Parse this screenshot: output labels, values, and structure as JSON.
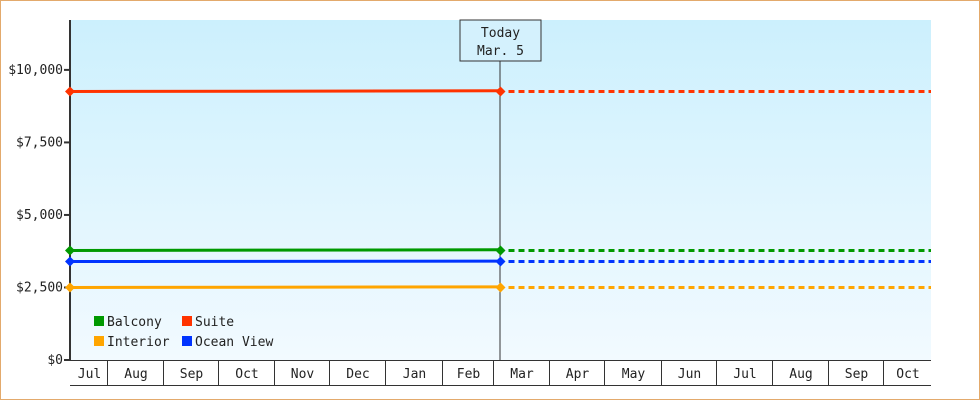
{
  "chart_data": {
    "type": "line",
    "title": "",
    "xlabel": "",
    "ylabel": "",
    "ylim": [
      0,
      11720
    ],
    "y_ticks": [
      "$0",
      "$2,500",
      "$5,000",
      "$7,500",
      "$10,000"
    ],
    "y_tick_values": [
      0,
      2500,
      5000,
      7500,
      10000
    ],
    "x_tick_labels": [
      "Jul",
      "Aug",
      "Sep",
      "Oct",
      "Nov",
      "Dec",
      "Jan",
      "Feb",
      "Mar",
      "Apr",
      "May",
      "Jun",
      "Jul",
      "Aug",
      "Sep",
      "Oct"
    ],
    "today": {
      "label": "Today",
      "date": "Mar. 5"
    },
    "grid": false,
    "legend_placement": "bottom-left",
    "background_gradient": [
      "#ccf0fd",
      "#f2faff"
    ],
    "series": [
      {
        "name": "Balcony",
        "color": "#009900",
        "values": [
          3800,
          3800
        ],
        "projected": 3800
      },
      {
        "name": "Suite",
        "color": "#ff3300",
        "values": [
          9280,
          9280
        ],
        "projected": 9280
      },
      {
        "name": "Interior",
        "color": "#ffa500",
        "values": [
          2520,
          2520
        ],
        "projected": 2520
      },
      {
        "name": "Ocean View",
        "color": "#0033ff",
        "values": [
          3410,
          3410
        ],
        "projected": 3410
      }
    ]
  }
}
